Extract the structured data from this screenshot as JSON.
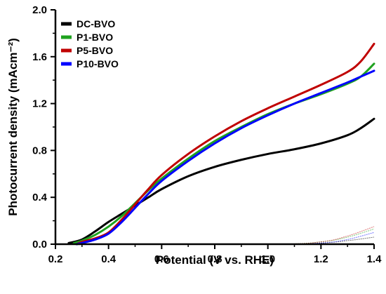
{
  "chart_data": {
    "type": "line",
    "title": "",
    "xlabel": "Potential (V vs. RHE)",
    "ylabel": "Photocurrent density (mAcm⁻²)",
    "xlim": [
      0.2,
      1.4
    ],
    "ylim": [
      0.0,
      2.0
    ],
    "x_ticks": [
      0.2,
      0.4,
      0.6,
      0.8,
      1.0,
      1.2,
      1.4
    ],
    "x_tick_labels": [
      "0.2",
      "0.4",
      "0.6",
      "0.8",
      "1.0",
      "1.2",
      "1.4"
    ],
    "y_ticks": [
      0.0,
      0.4,
      0.8,
      1.2,
      1.6,
      2.0
    ],
    "y_tick_labels": [
      "0.0",
      "0.4",
      "0.8",
      "1.2",
      "1.6",
      "2.0"
    ],
    "grid": false,
    "legend_position": "top-left",
    "series": [
      {
        "name": "DC-BVO",
        "color": "#000000",
        "x": [
          0.25,
          0.3,
          0.35,
          0.4,
          0.45,
          0.5,
          0.55,
          0.6,
          0.7,
          0.8,
          0.9,
          1.0,
          1.1,
          1.2,
          1.3,
          1.35,
          1.4
        ],
        "y": [
          0.01,
          0.04,
          0.11,
          0.19,
          0.26,
          0.33,
          0.4,
          0.47,
          0.58,
          0.66,
          0.72,
          0.77,
          0.81,
          0.86,
          0.93,
          0.99,
          1.07
        ]
      },
      {
        "name": "P1-BVO",
        "color": "#1fa21f",
        "x": [
          0.27,
          0.3,
          0.35,
          0.4,
          0.45,
          0.5,
          0.55,
          0.6,
          0.7,
          0.8,
          0.9,
          1.0,
          1.1,
          1.2,
          1.3,
          1.35,
          1.4
        ],
        "y": [
          0.01,
          0.03,
          0.08,
          0.15,
          0.24,
          0.35,
          0.46,
          0.56,
          0.73,
          0.88,
          1.0,
          1.11,
          1.2,
          1.28,
          1.37,
          1.43,
          1.54
        ]
      },
      {
        "name": "P5-BVO",
        "color": "#c00000",
        "x": [
          0.28,
          0.3,
          0.35,
          0.4,
          0.45,
          0.5,
          0.55,
          0.6,
          0.7,
          0.8,
          0.9,
          1.0,
          1.1,
          1.2,
          1.3,
          1.35,
          1.4
        ],
        "y": [
          0.0,
          0.02,
          0.05,
          0.1,
          0.21,
          0.34,
          0.47,
          0.59,
          0.77,
          0.92,
          1.05,
          1.16,
          1.26,
          1.36,
          1.47,
          1.56,
          1.71
        ]
      },
      {
        "name": "P10-BVO",
        "color": "#0000ff",
        "x": [
          0.28,
          0.3,
          0.35,
          0.4,
          0.45,
          0.5,
          0.55,
          0.6,
          0.7,
          0.8,
          0.9,
          1.0,
          1.1,
          1.2,
          1.3,
          1.35,
          1.4
        ],
        "y": [
          0.0,
          0.01,
          0.04,
          0.09,
          0.19,
          0.31,
          0.43,
          0.54,
          0.71,
          0.86,
          0.99,
          1.1,
          1.2,
          1.29,
          1.38,
          1.43,
          1.48
        ]
      }
    ],
    "dark_series": [
      {
        "color": "#000000",
        "x": [
          0.2,
          1.0,
          1.2,
          1.3,
          1.4
        ],
        "y": [
          0.0,
          0.0,
          0.01,
          0.03,
          0.06
        ]
      },
      {
        "color": "#1fa21f",
        "x": [
          0.2,
          1.0,
          1.2,
          1.3,
          1.4
        ],
        "y": [
          0.0,
          0.0,
          0.02,
          0.06,
          0.13
        ]
      },
      {
        "color": "#c00000",
        "x": [
          0.2,
          1.0,
          1.2,
          1.3,
          1.4
        ],
        "y": [
          0.0,
          0.0,
          0.02,
          0.07,
          0.15
        ]
      },
      {
        "color": "#0000ff",
        "x": [
          0.2,
          1.0,
          1.2,
          1.3,
          1.4
        ],
        "y": [
          0.0,
          0.0,
          0.01,
          0.04,
          0.1
        ]
      }
    ]
  }
}
